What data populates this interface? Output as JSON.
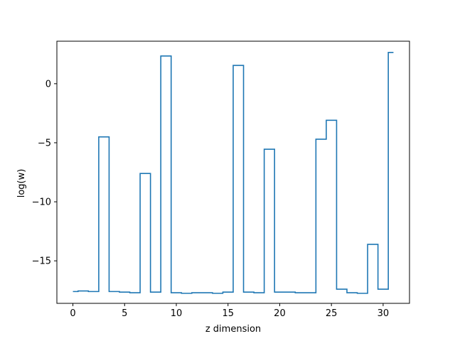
{
  "chart_data": {
    "type": "line",
    "drawstyle": "steps-mid",
    "title": "",
    "xlabel": "z dimension",
    "ylabel": "log(w)",
    "xlim": [
      -1.55,
      32.55
    ],
    "ylim": [
      -18.6,
      3.6
    ],
    "x_ticks": [
      0,
      5,
      10,
      15,
      20,
      25,
      30
    ],
    "x_tick_labels": [
      "0",
      "5",
      "10",
      "15",
      "20",
      "25",
      "30"
    ],
    "y_ticks": [
      0,
      -5,
      -10,
      -15
    ],
    "y_tick_labels": [
      "0",
      "−5",
      "−10",
      "−15"
    ],
    "grid": false,
    "line_color": "#1f77b4",
    "series": [
      {
        "x": [
          0,
          1,
          2,
          3,
          4,
          5,
          6,
          7,
          8,
          9,
          10,
          11,
          12,
          13,
          14,
          15,
          16,
          17,
          18,
          19,
          20,
          21,
          22,
          23,
          24,
          25,
          26,
          27,
          28,
          29,
          30,
          31
        ],
        "values": [
          -17.6,
          -17.55,
          -17.6,
          -4.5,
          -17.6,
          -17.65,
          -17.7,
          -7.6,
          -17.65,
          2.35,
          -17.7,
          -17.75,
          -17.7,
          -17.7,
          -17.75,
          -17.65,
          1.55,
          -17.65,
          -17.7,
          -5.55,
          -17.65,
          -17.65,
          -17.7,
          -17.7,
          -4.7,
          -3.1,
          -17.4,
          -17.7,
          -17.75,
          -13.6,
          -17.4,
          2.65
        ]
      }
    ]
  }
}
